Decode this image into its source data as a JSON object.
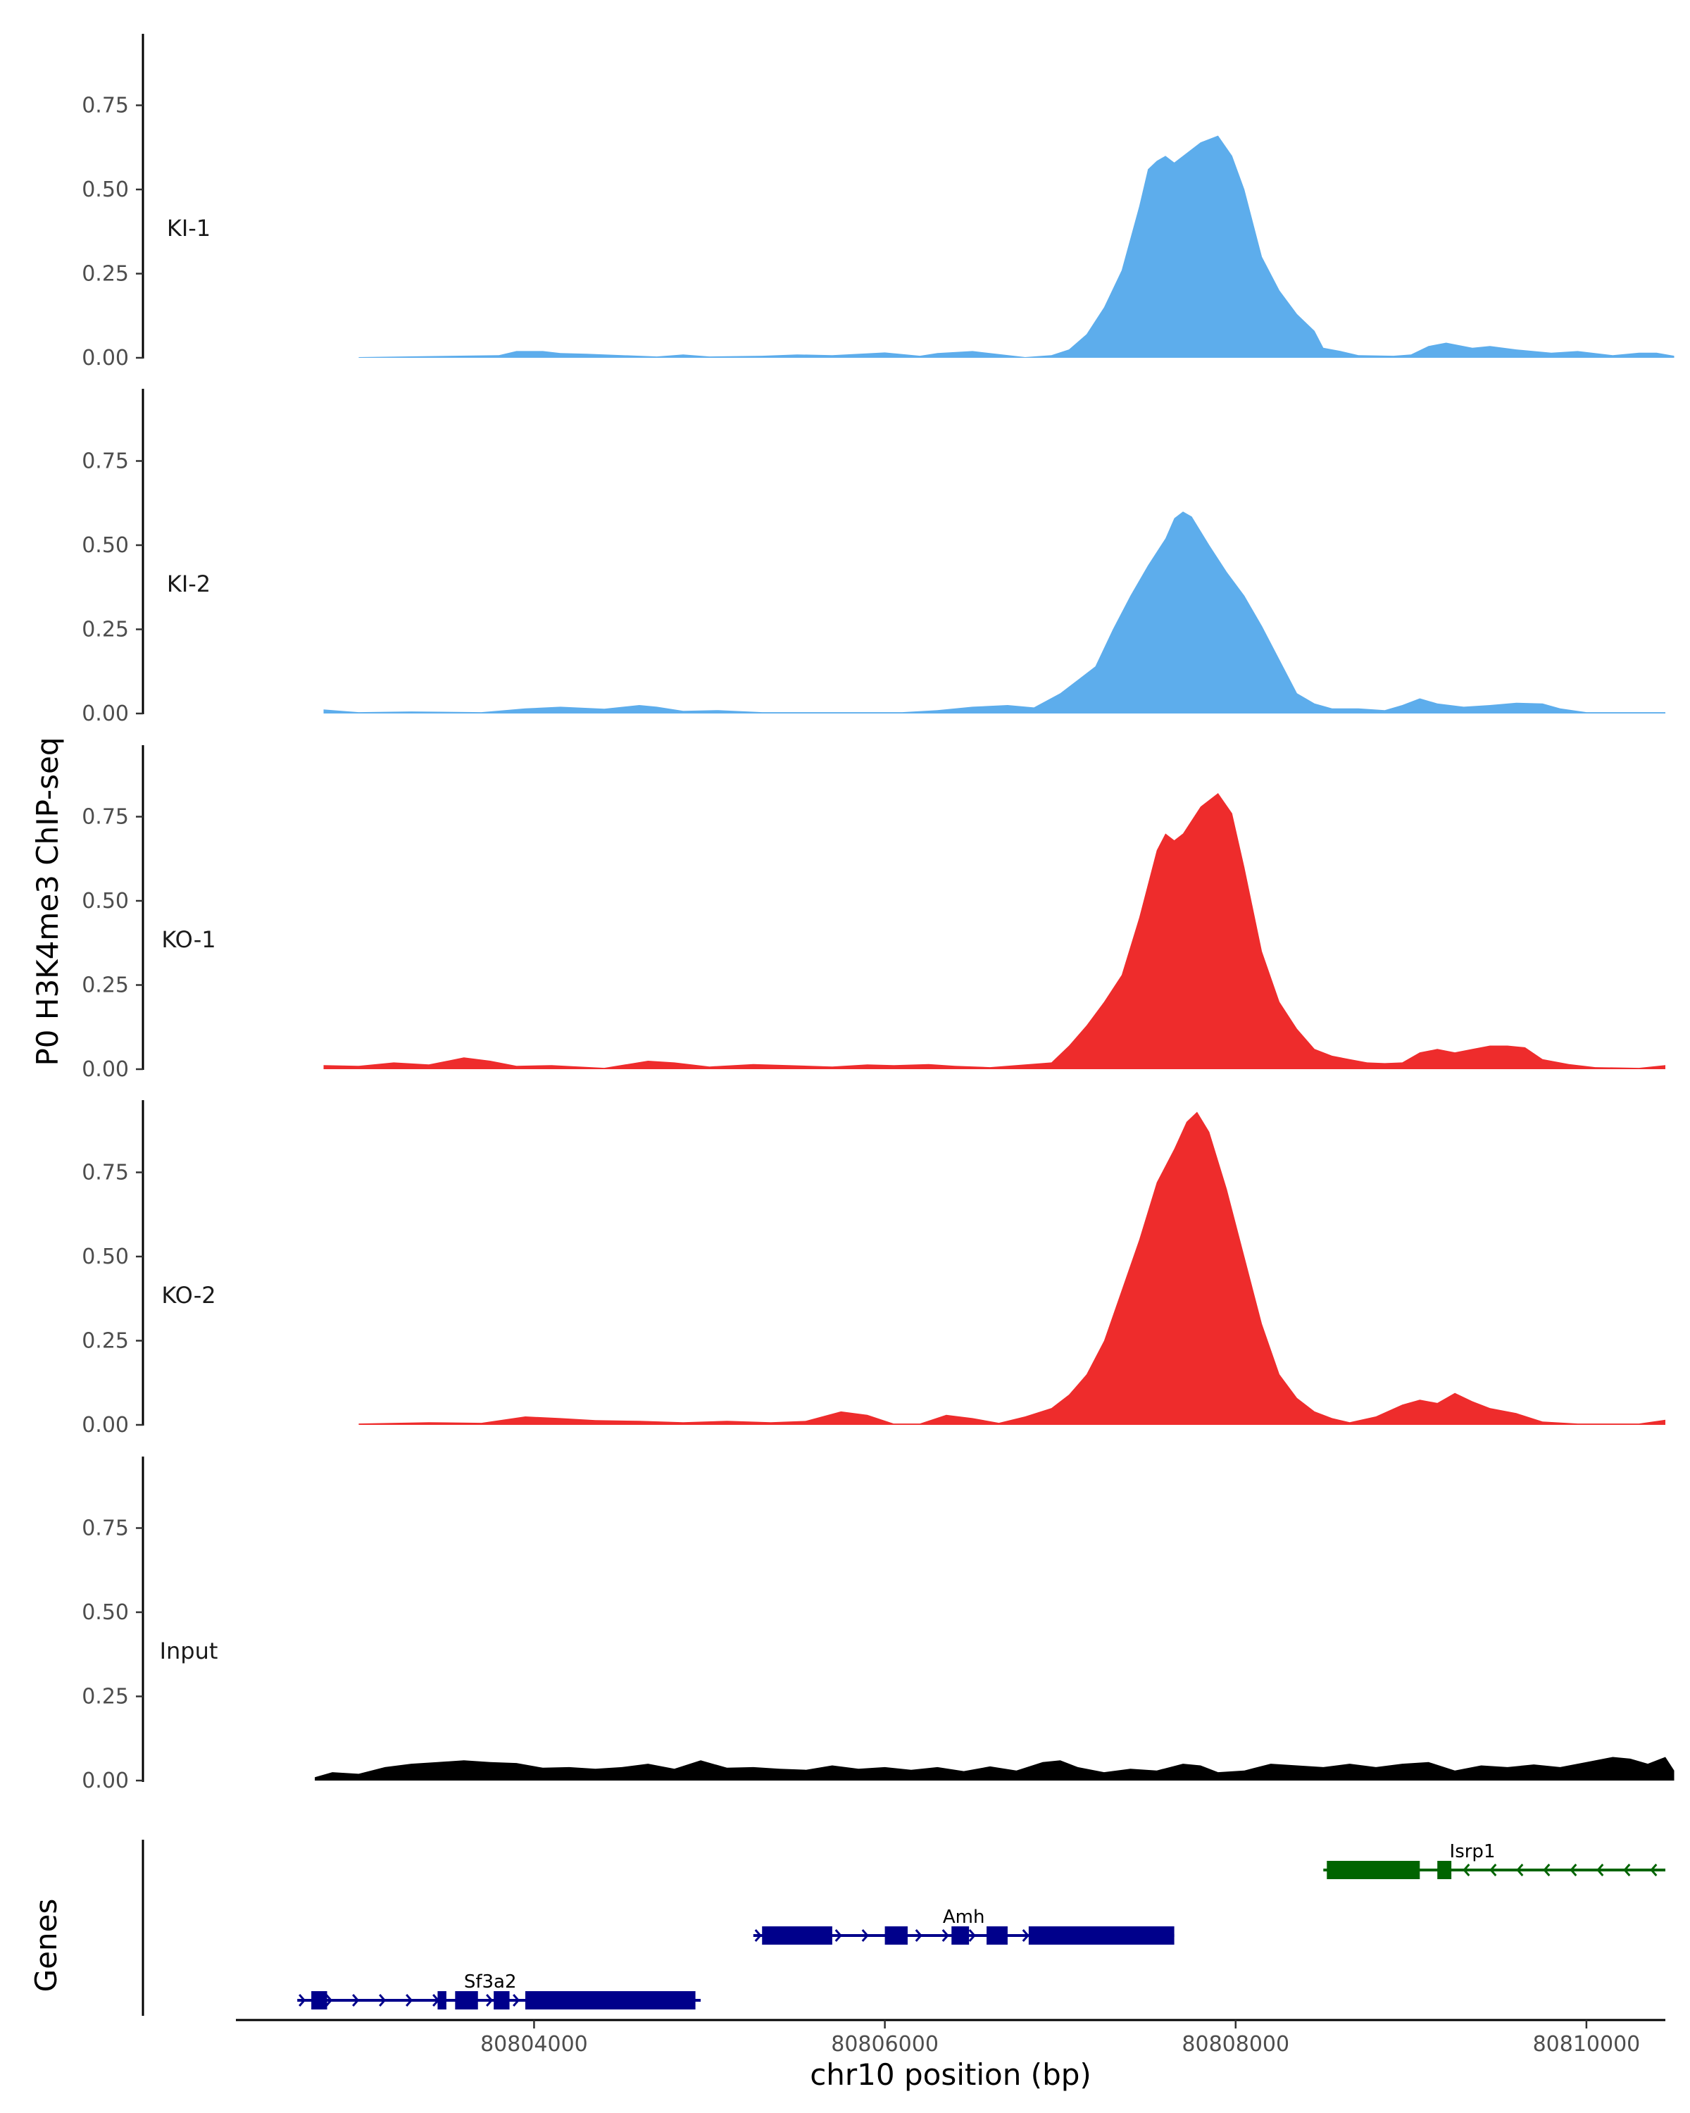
{
  "chart_data": {
    "type": "area",
    "ylabel": "P0 H3K4me3 ChIP-seq",
    "xlabel": "chr10 position (bp)",
    "xlim": [
      80802300,
      80810450
    ],
    "ylim": [
      0,
      0.95
    ],
    "yticks": [
      "0.00",
      "0.25",
      "0.50",
      "0.75"
    ],
    "ytick_values": [
      0,
      0.25,
      0.5,
      0.75
    ],
    "xticks": [
      "80804000",
      "80806000",
      "80808000",
      "80810000"
    ],
    "xtick_values": [
      80804000,
      80806000,
      80808000,
      80810000
    ],
    "genes_label": "Genes",
    "series": [
      {
        "name": "KI-1",
        "color": "#5DADEC",
        "points": [
          [
            80803000,
            0.002
          ],
          [
            80803800,
            0.008
          ],
          [
            80803900,
            0.02
          ],
          [
            80804050,
            0.02
          ],
          [
            80804150,
            0.014
          ],
          [
            80804300,
            0.012
          ],
          [
            80804700,
            0.004
          ],
          [
            80804850,
            0.01
          ],
          [
            80805000,
            0.004
          ],
          [
            80805300,
            0.006
          ],
          [
            80805500,
            0.01
          ],
          [
            80805700,
            0.008
          ],
          [
            80806000,
            0.016
          ],
          [
            80806200,
            0.006
          ],
          [
            80806300,
            0.014
          ],
          [
            80806500,
            0.02
          ],
          [
            80806800,
            0.002
          ],
          [
            80806950,
            0.008
          ],
          [
            80807050,
            0.025
          ],
          [
            80807150,
            0.07
          ],
          [
            80807250,
            0.15
          ],
          [
            80807350,
            0.26
          ],
          [
            80807450,
            0.45
          ],
          [
            80807500,
            0.56
          ],
          [
            80807550,
            0.585
          ],
          [
            80807600,
            0.6
          ],
          [
            80807650,
            0.58
          ],
          [
            80807700,
            0.6
          ],
          [
            80807800,
            0.64
          ],
          [
            80807900,
            0.66
          ],
          [
            80807980,
            0.6
          ],
          [
            80808050,
            0.5
          ],
          [
            80808150,
            0.3
          ],
          [
            80808250,
            0.2
          ],
          [
            80808350,
            0.13
          ],
          [
            80808450,
            0.08
          ],
          [
            80808500,
            0.03
          ],
          [
            80808600,
            0.02
          ],
          [
            80808700,
            0.008
          ],
          [
            80808900,
            0.006
          ],
          [
            80809000,
            0.01
          ],
          [
            80809100,
            0.035
          ],
          [
            80809200,
            0.045
          ],
          [
            80809350,
            0.03
          ],
          [
            80809450,
            0.035
          ],
          [
            80809600,
            0.025
          ],
          [
            80809800,
            0.015
          ],
          [
            80809950,
            0.02
          ],
          [
            80810150,
            0.008
          ],
          [
            80810300,
            0.015
          ],
          [
            80810400,
            0.015
          ],
          [
            80810500,
            0.006
          ]
        ]
      },
      {
        "name": "KI-2",
        "color": "#5DADEC",
        "points": [
          [
            80802800,
            0.012
          ],
          [
            80803000,
            0.004
          ],
          [
            80803300,
            0.006
          ],
          [
            80803700,
            0.004
          ],
          [
            80803950,
            0.015
          ],
          [
            80804150,
            0.02
          ],
          [
            80804400,
            0.014
          ],
          [
            80804600,
            0.025
          ],
          [
            80804700,
            0.02
          ],
          [
            80804850,
            0.008
          ],
          [
            80805050,
            0.01
          ],
          [
            80805300,
            0.004
          ],
          [
            80805700,
            0.004
          ],
          [
            80806100,
            0.004
          ],
          [
            80806300,
            0.01
          ],
          [
            80806500,
            0.02
          ],
          [
            80806700,
            0.025
          ],
          [
            80806850,
            0.018
          ],
          [
            80807000,
            0.06
          ],
          [
            80807100,
            0.1
          ],
          [
            80807200,
            0.14
          ],
          [
            80807300,
            0.25
          ],
          [
            80807400,
            0.35
          ],
          [
            80807500,
            0.44
          ],
          [
            80807600,
            0.52
          ],
          [
            80807650,
            0.58
          ],
          [
            80807700,
            0.6
          ],
          [
            80807750,
            0.585
          ],
          [
            80807850,
            0.5
          ],
          [
            80807950,
            0.42
          ],
          [
            80808050,
            0.35
          ],
          [
            80808150,
            0.26
          ],
          [
            80808250,
            0.16
          ],
          [
            80808350,
            0.06
          ],
          [
            80808450,
            0.03
          ],
          [
            80808550,
            0.015
          ],
          [
            80808700,
            0.015
          ],
          [
            80808850,
            0.01
          ],
          [
            80808950,
            0.025
          ],
          [
            80809050,
            0.045
          ],
          [
            80809150,
            0.03
          ],
          [
            80809300,
            0.02
          ],
          [
            80809450,
            0.025
          ],
          [
            80809600,
            0.032
          ],
          [
            80809750,
            0.03
          ],
          [
            80809850,
            0.015
          ],
          [
            80810000,
            0.004
          ],
          [
            80810200,
            0.004
          ],
          [
            80810450,
            0.004
          ]
        ]
      },
      {
        "name": "KO-1",
        "color": "#EE2C2C",
        "points": [
          [
            80802800,
            0.012
          ],
          [
            80803000,
            0.01
          ],
          [
            80803200,
            0.02
          ],
          [
            80803400,
            0.014
          ],
          [
            80803600,
            0.035
          ],
          [
            80803750,
            0.025
          ],
          [
            80803900,
            0.01
          ],
          [
            80804100,
            0.012
          ],
          [
            80804400,
            0.004
          ],
          [
            80804650,
            0.025
          ],
          [
            80804800,
            0.02
          ],
          [
            80805000,
            0.008
          ],
          [
            80805250,
            0.015
          ],
          [
            80805450,
            0.012
          ],
          [
            80805700,
            0.008
          ],
          [
            80805900,
            0.014
          ],
          [
            80806050,
            0.012
          ],
          [
            80806250,
            0.015
          ],
          [
            80806400,
            0.01
          ],
          [
            80806600,
            0.006
          ],
          [
            80806800,
            0.014
          ],
          [
            80806950,
            0.02
          ],
          [
            80807050,
            0.07
          ],
          [
            80807150,
            0.13
          ],
          [
            80807250,
            0.2
          ],
          [
            80807350,
            0.28
          ],
          [
            80807450,
            0.45
          ],
          [
            80807550,
            0.65
          ],
          [
            80807600,
            0.7
          ],
          [
            80807650,
            0.68
          ],
          [
            80807700,
            0.7
          ],
          [
            80807800,
            0.78
          ],
          [
            80807900,
            0.82
          ],
          [
            80807980,
            0.76
          ],
          [
            80808050,
            0.6
          ],
          [
            80808150,
            0.35
          ],
          [
            80808250,
            0.2
          ],
          [
            80808350,
            0.12
          ],
          [
            80808450,
            0.06
          ],
          [
            80808550,
            0.04
          ],
          [
            80808650,
            0.03
          ],
          [
            80808750,
            0.02
          ],
          [
            80808850,
            0.018
          ],
          [
            80808950,
            0.02
          ],
          [
            80809050,
            0.05
          ],
          [
            80809150,
            0.06
          ],
          [
            80809250,
            0.05
          ],
          [
            80809350,
            0.06
          ],
          [
            80809450,
            0.07
          ],
          [
            80809550,
            0.07
          ],
          [
            80809650,
            0.065
          ],
          [
            80809750,
            0.03
          ],
          [
            80809900,
            0.015
          ],
          [
            80810050,
            0.006
          ],
          [
            80810300,
            0.004
          ],
          [
            80810450,
            0.012
          ]
        ]
      },
      {
        "name": "KO-2",
        "color": "#EE2C2C",
        "points": [
          [
            80803000,
            0.004
          ],
          [
            80803400,
            0.008
          ],
          [
            80803700,
            0.006
          ],
          [
            80803950,
            0.025
          ],
          [
            80804150,
            0.02
          ],
          [
            80804350,
            0.014
          ],
          [
            80804600,
            0.012
          ],
          [
            80804850,
            0.008
          ],
          [
            80805100,
            0.012
          ],
          [
            80805350,
            0.008
          ],
          [
            80805550,
            0.012
          ],
          [
            80805750,
            0.04
          ],
          [
            80805900,
            0.03
          ],
          [
            80806050,
            0.004
          ],
          [
            80806200,
            0.004
          ],
          [
            80806350,
            0.03
          ],
          [
            80806500,
            0.02
          ],
          [
            80806650,
            0.006
          ],
          [
            80806800,
            0.025
          ],
          [
            80806950,
            0.05
          ],
          [
            80807050,
            0.09
          ],
          [
            80807150,
            0.15
          ],
          [
            80807250,
            0.25
          ],
          [
            80807350,
            0.4
          ],
          [
            80807450,
            0.55
          ],
          [
            80807550,
            0.72
          ],
          [
            80807650,
            0.82
          ],
          [
            80807720,
            0.9
          ],
          [
            80807780,
            0.93
          ],
          [
            80807850,
            0.87
          ],
          [
            80807950,
            0.7
          ],
          [
            80808050,
            0.5
          ],
          [
            80808150,
            0.3
          ],
          [
            80808250,
            0.15
          ],
          [
            80808350,
            0.08
          ],
          [
            80808450,
            0.04
          ],
          [
            80808550,
            0.02
          ],
          [
            80808650,
            0.008
          ],
          [
            80808800,
            0.025
          ],
          [
            80808950,
            0.06
          ],
          [
            80809050,
            0.075
          ],
          [
            80809150,
            0.065
          ],
          [
            80809250,
            0.095
          ],
          [
            80809350,
            0.07
          ],
          [
            80809450,
            0.05
          ],
          [
            80809600,
            0.035
          ],
          [
            80809750,
            0.01
          ],
          [
            80809950,
            0.004
          ],
          [
            80810300,
            0.004
          ],
          [
            80810450,
            0.015
          ]
        ]
      },
      {
        "name": "Input",
        "color": "#000000",
        "points": [
          [
            80802750,
            0.01
          ],
          [
            80802850,
            0.025
          ],
          [
            80803000,
            0.02
          ],
          [
            80803150,
            0.04
          ],
          [
            80803300,
            0.05
          ],
          [
            80803450,
            0.055
          ],
          [
            80803600,
            0.06
          ],
          [
            80803750,
            0.055
          ],
          [
            80803900,
            0.052
          ],
          [
            80804050,
            0.038
          ],
          [
            80804200,
            0.04
          ],
          [
            80804350,
            0.035
          ],
          [
            80804500,
            0.04
          ],
          [
            80804650,
            0.05
          ],
          [
            80804800,
            0.035
          ],
          [
            80804950,
            0.06
          ],
          [
            80805100,
            0.038
          ],
          [
            80805250,
            0.04
          ],
          [
            80805400,
            0.035
          ],
          [
            80805550,
            0.032
          ],
          [
            80805700,
            0.045
          ],
          [
            80805850,
            0.035
          ],
          [
            80806000,
            0.04
          ],
          [
            80806150,
            0.032
          ],
          [
            80806300,
            0.04
          ],
          [
            80806450,
            0.028
          ],
          [
            80806600,
            0.042
          ],
          [
            80806750,
            0.03
          ],
          [
            80806900,
            0.055
          ],
          [
            80807000,
            0.06
          ],
          [
            80807100,
            0.04
          ],
          [
            80807250,
            0.025
          ],
          [
            80807400,
            0.035
          ],
          [
            80807550,
            0.03
          ],
          [
            80807700,
            0.05
          ],
          [
            80807800,
            0.045
          ],
          [
            80807900,
            0.025
          ],
          [
            80808050,
            0.03
          ],
          [
            80808200,
            0.05
          ],
          [
            80808350,
            0.045
          ],
          [
            80808500,
            0.04
          ],
          [
            80808650,
            0.05
          ],
          [
            80808800,
            0.04
          ],
          [
            80808950,
            0.05
          ],
          [
            80809100,
            0.055
          ],
          [
            80809250,
            0.03
          ],
          [
            80809400,
            0.045
          ],
          [
            80809550,
            0.04
          ],
          [
            80809700,
            0.048
          ],
          [
            80809850,
            0.04
          ],
          [
            80810000,
            0.055
          ],
          [
            80810150,
            0.07
          ],
          [
            80810250,
            0.065
          ],
          [
            80810350,
            0.05
          ],
          [
            80810450,
            0.07
          ],
          [
            80810500,
            0.03
          ]
        ]
      }
    ],
    "genes": [
      {
        "name": "Sf3a2",
        "color": "#00008B",
        "strand": "+",
        "row": 2,
        "start": 80802650,
        "end": 80804950,
        "label_x": 80803750,
        "exons": [
          [
            80802730,
            80802820
          ],
          [
            80803450,
            80803500
          ],
          [
            80803550,
            80803680
          ],
          [
            80803770,
            80803860
          ],
          [
            80803950,
            80804920
          ]
        ]
      },
      {
        "name": "Amh",
        "color": "#00008B",
        "strand": "+",
        "row": 1,
        "start": 80805250,
        "end": 80807650,
        "label_x": 80806450,
        "exons": [
          [
            80805300,
            80805700
          ],
          [
            80806000,
            80806130
          ],
          [
            80806380,
            80806480
          ],
          [
            80806580,
            80806700
          ],
          [
            80806820,
            80807650
          ]
        ]
      },
      {
        "name": "Isrp1",
        "color": "#006400",
        "strand": "-",
        "row": 0,
        "start": 80808500,
        "end": 80810450,
        "label_x": 80809350,
        "exons": [
          [
            80808520,
            80809050
          ],
          [
            80809150,
            80809230
          ]
        ]
      }
    ]
  }
}
